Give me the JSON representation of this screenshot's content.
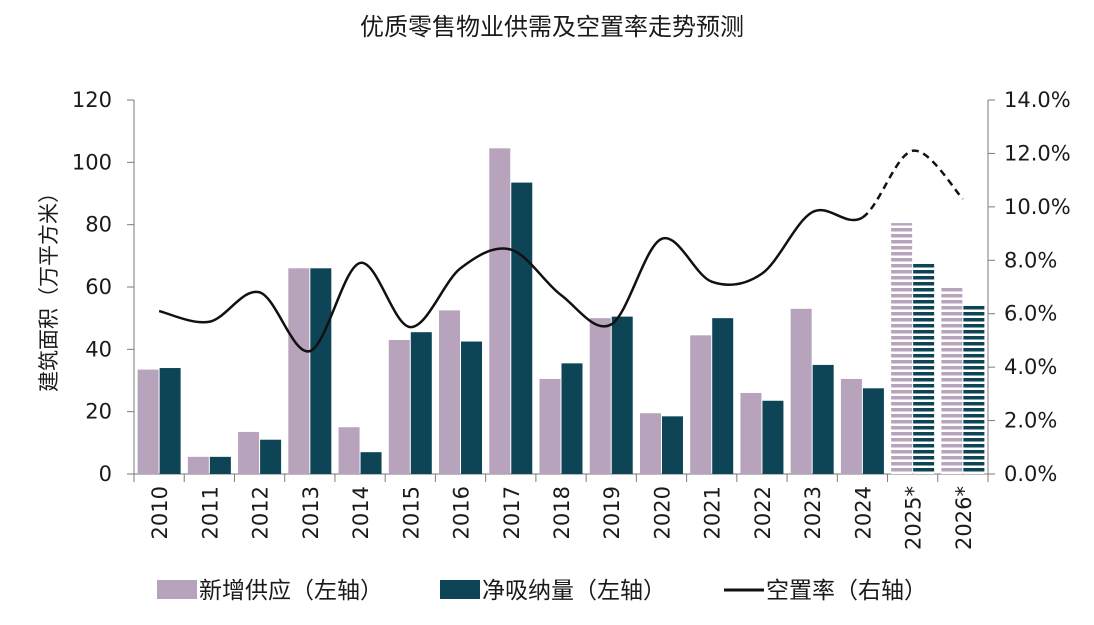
{
  "chart_data": {
    "type": "bar",
    "title": "优质零售物业供需及空置率走势预测",
    "ylabel": "建筑面积（万平方米）",
    "ylabel_right": "",
    "categories": [
      "2010",
      "2011",
      "2012",
      "2013",
      "2014",
      "2015",
      "2016",
      "2017",
      "2018",
      "2019",
      "2020",
      "2021",
      "2022",
      "2023",
      "2024",
      "2025*",
      "2026*"
    ],
    "forecast_categories": [
      "2025*",
      "2026*"
    ],
    "ylim": [
      0,
      120
    ],
    "yticks": [
      0,
      20,
      40,
      60,
      80,
      100,
      120
    ],
    "ytick_labels": [
      "0",
      "20",
      "40",
      "60",
      "80",
      "100",
      "120"
    ],
    "ylim_right": [
      0,
      14
    ],
    "yticks_right": [
      0,
      2,
      4,
      6,
      8,
      10,
      12,
      14
    ],
    "ytick_labels_right": [
      "0.0%",
      "2.0%",
      "4.0%",
      "6.0%",
      "8.0%",
      "10.0%",
      "12.0%",
      "14.0%"
    ],
    "series": [
      {
        "name": "新增供应（左轴）",
        "type": "bar",
        "axis": "left",
        "color": "#b8a3bd",
        "values": [
          33.5,
          5.5,
          13.5,
          66,
          15,
          43,
          52.5,
          104.5,
          30.5,
          50,
          19.5,
          44.5,
          26,
          53,
          30.5,
          80.5,
          60
        ]
      },
      {
        "name": "净吸纳量（左轴）",
        "type": "bar",
        "axis": "left",
        "color": "#0d4557",
        "values": [
          34,
          5.5,
          11,
          66,
          7,
          45.5,
          42.5,
          93.5,
          35.5,
          50.5,
          18.5,
          50,
          23.5,
          35,
          27.5,
          68,
          54
        ]
      },
      {
        "name": "空置率（右轴）",
        "type": "line",
        "axis": "right",
        "color": "#111111",
        "values": [
          6.1,
          5.7,
          6.8,
          4.6,
          7.9,
          5.5,
          7.7,
          8.4,
          6.7,
          5.6,
          8.8,
          7.2,
          7.5,
          9.8,
          9.6,
          12.1,
          10.3
        ]
      }
    ],
    "legend_position": "bottom",
    "grid": false
  }
}
